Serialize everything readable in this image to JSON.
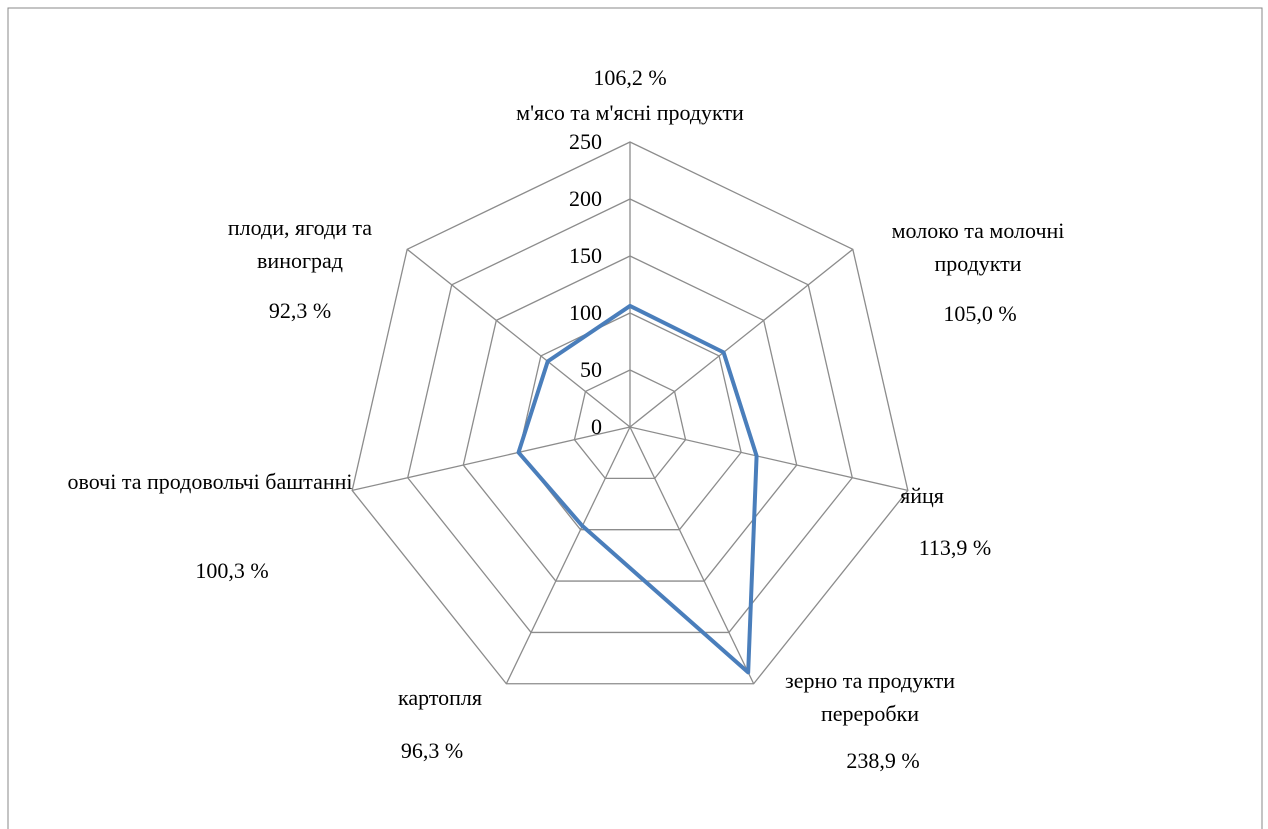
{
  "chart_data": {
    "type": "radar",
    "categories": [
      "м'ясо та м'ясні продукти",
      "молоко та молочні продукти",
      "яйця",
      "зерно та продукти переробки",
      "картопля",
      "овочі та продовольчі баштанні",
      "плоди, ягоди та виноград"
    ],
    "series": [
      {
        "name": null,
        "color": "#4a7ebb",
        "values": [
          106.2,
          105.0,
          113.9,
          238.9,
          96.3,
          100.3,
          92.3
        ],
        "value_labels": [
          "106,2 %",
          "105,0 %",
          "113,9 %",
          "238,9 %",
          "96,3 %",
          "100,3 %",
          "92,3 %"
        ]
      }
    ],
    "ylim": [
      0,
      250
    ],
    "yticks": [
      0,
      50,
      100,
      150,
      200,
      250
    ],
    "grid": true
  }
}
